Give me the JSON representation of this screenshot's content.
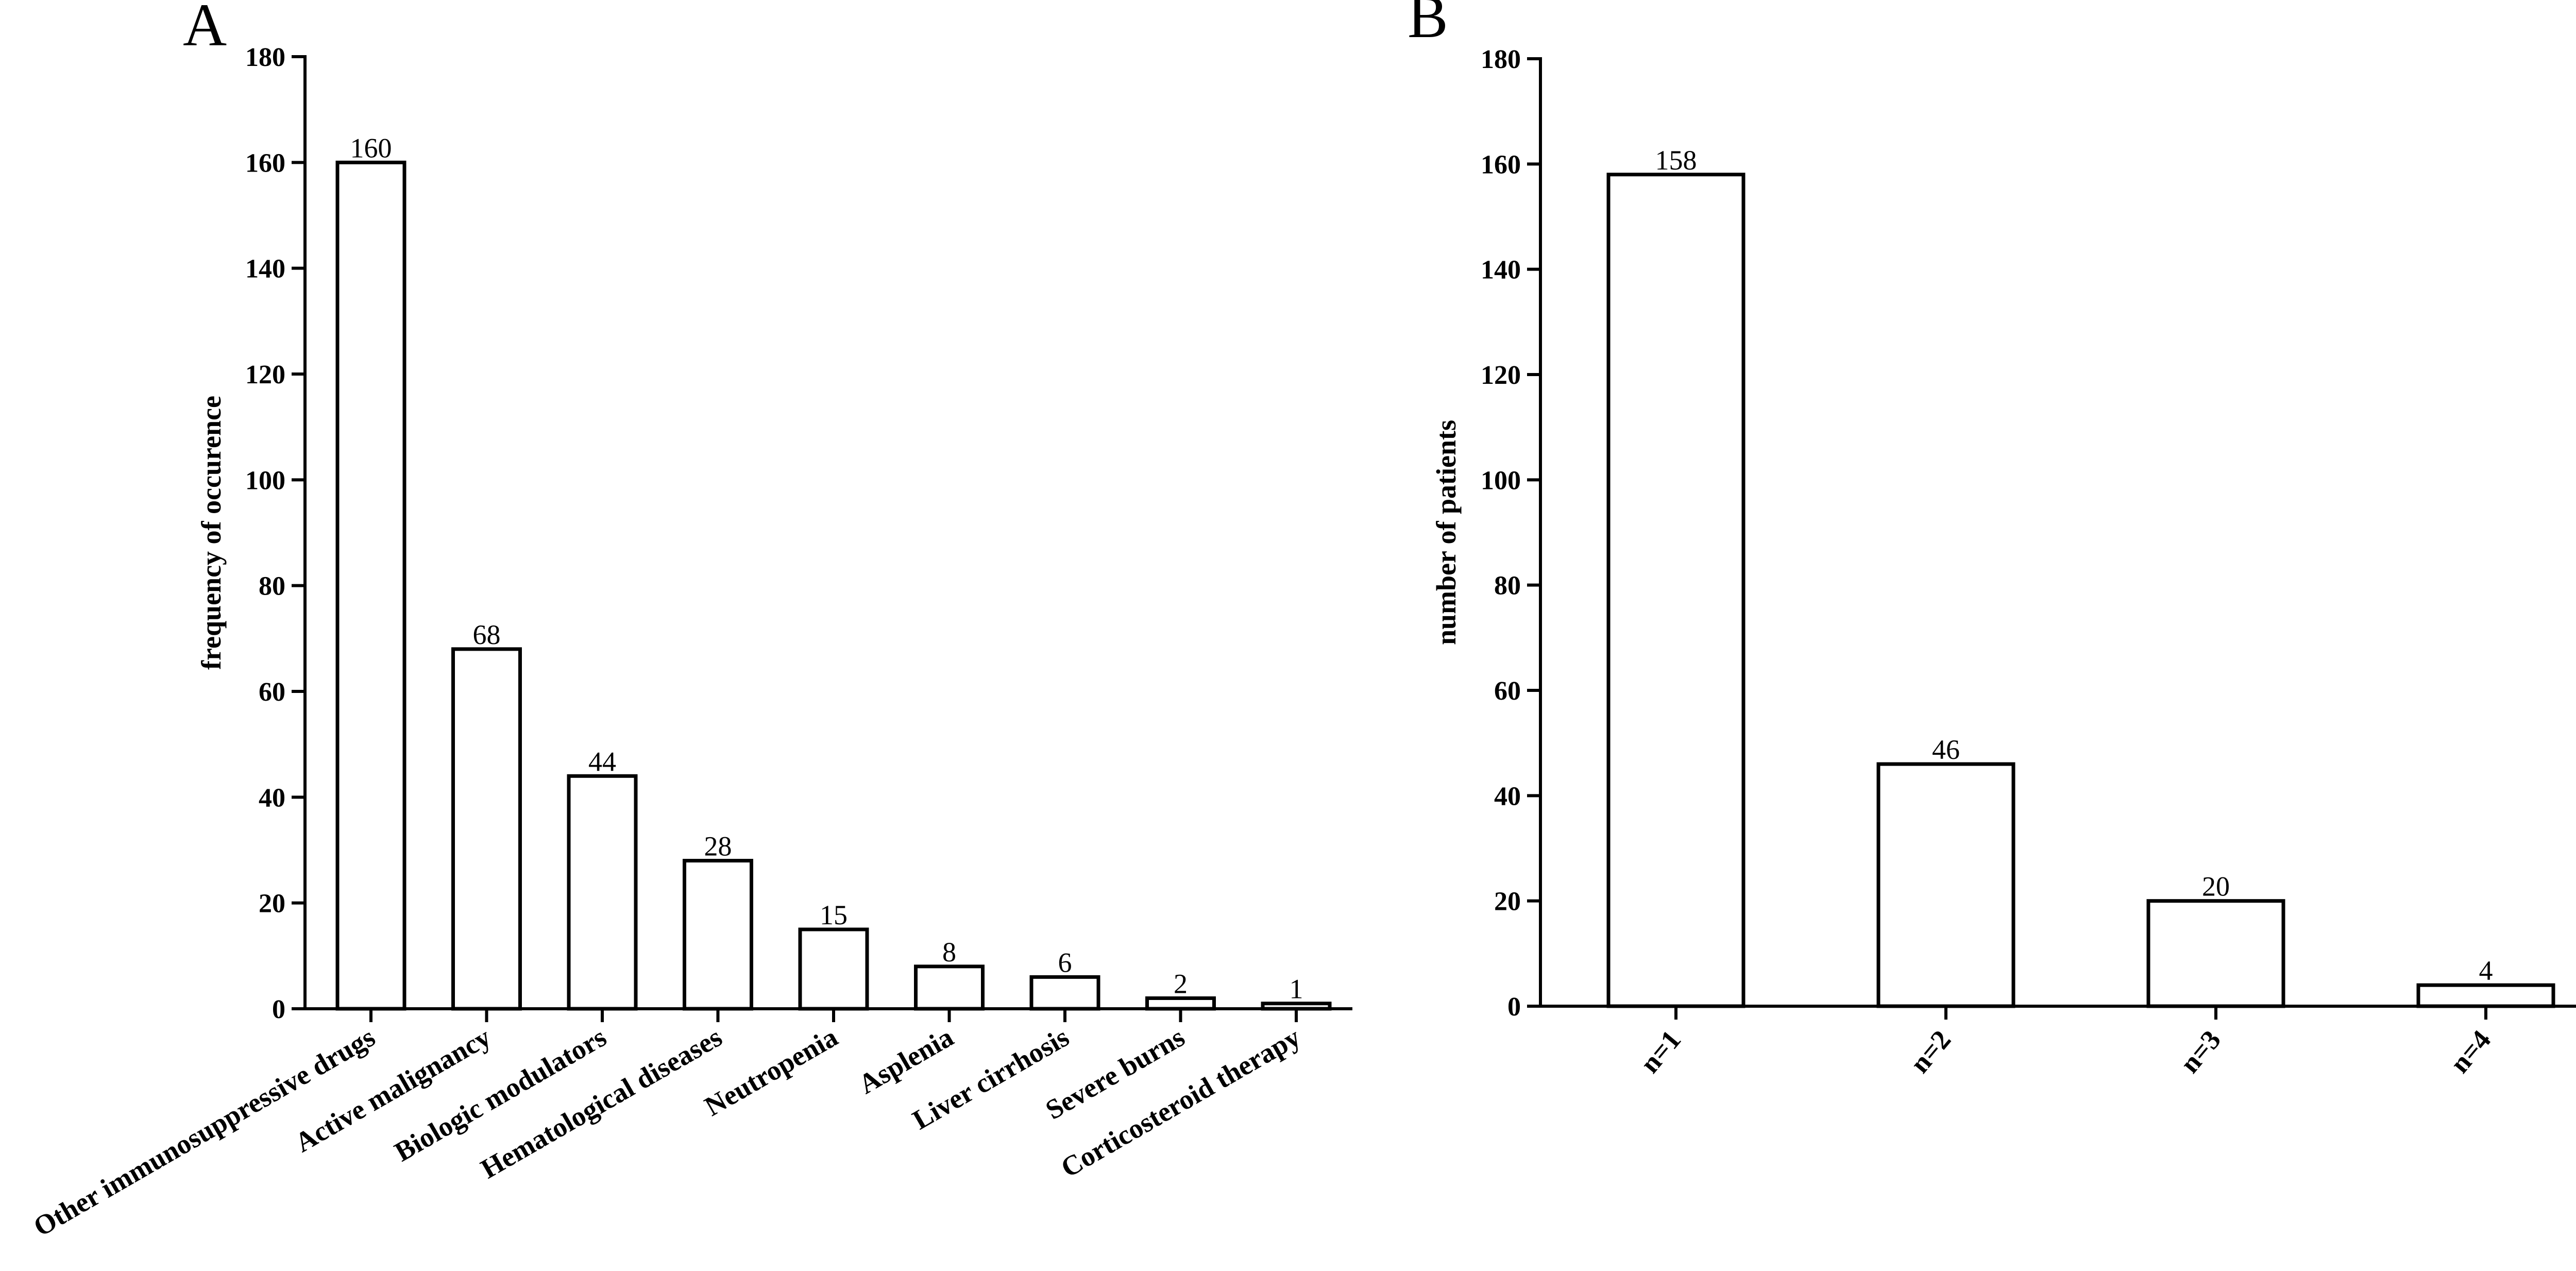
{
  "figure": {
    "background": "#ffffff",
    "bar_fill": "#ffffff",
    "bar_stroke": "#000000"
  },
  "chart_data": [
    {
      "panel_letter": "A",
      "type": "bar",
      "title": "",
      "xlabel": "",
      "ylabel": "frequency of occurence",
      "ylim": [
        0,
        180
      ],
      "yticks": [
        0,
        20,
        40,
        60,
        80,
        100,
        120,
        140,
        160,
        180
      ],
      "categories": [
        "Other immunosuppressive drugs",
        "Active malignancy",
        "Biologic modulators",
        "Hematological diseases",
        "Neutropenia",
        "Asplenia",
        "Liver cirrhosis",
        "Severe burns",
        "Corticosteroid therapy"
      ],
      "values": [
        160,
        68,
        44,
        28,
        15,
        8,
        6,
        2,
        1
      ],
      "grid": false,
      "legend": "none"
    },
    {
      "panel_letter": "B",
      "type": "bar",
      "title": "",
      "xlabel": "",
      "ylabel": "number of patients",
      "ylim": [
        0,
        180
      ],
      "yticks": [
        0,
        20,
        40,
        60,
        80,
        100,
        120,
        140,
        160,
        180
      ],
      "categories": [
        "n=1",
        "n=2",
        "n=3",
        "n=4"
      ],
      "values": [
        158,
        46,
        20,
        4
      ],
      "grid": false,
      "legend": "none"
    }
  ]
}
